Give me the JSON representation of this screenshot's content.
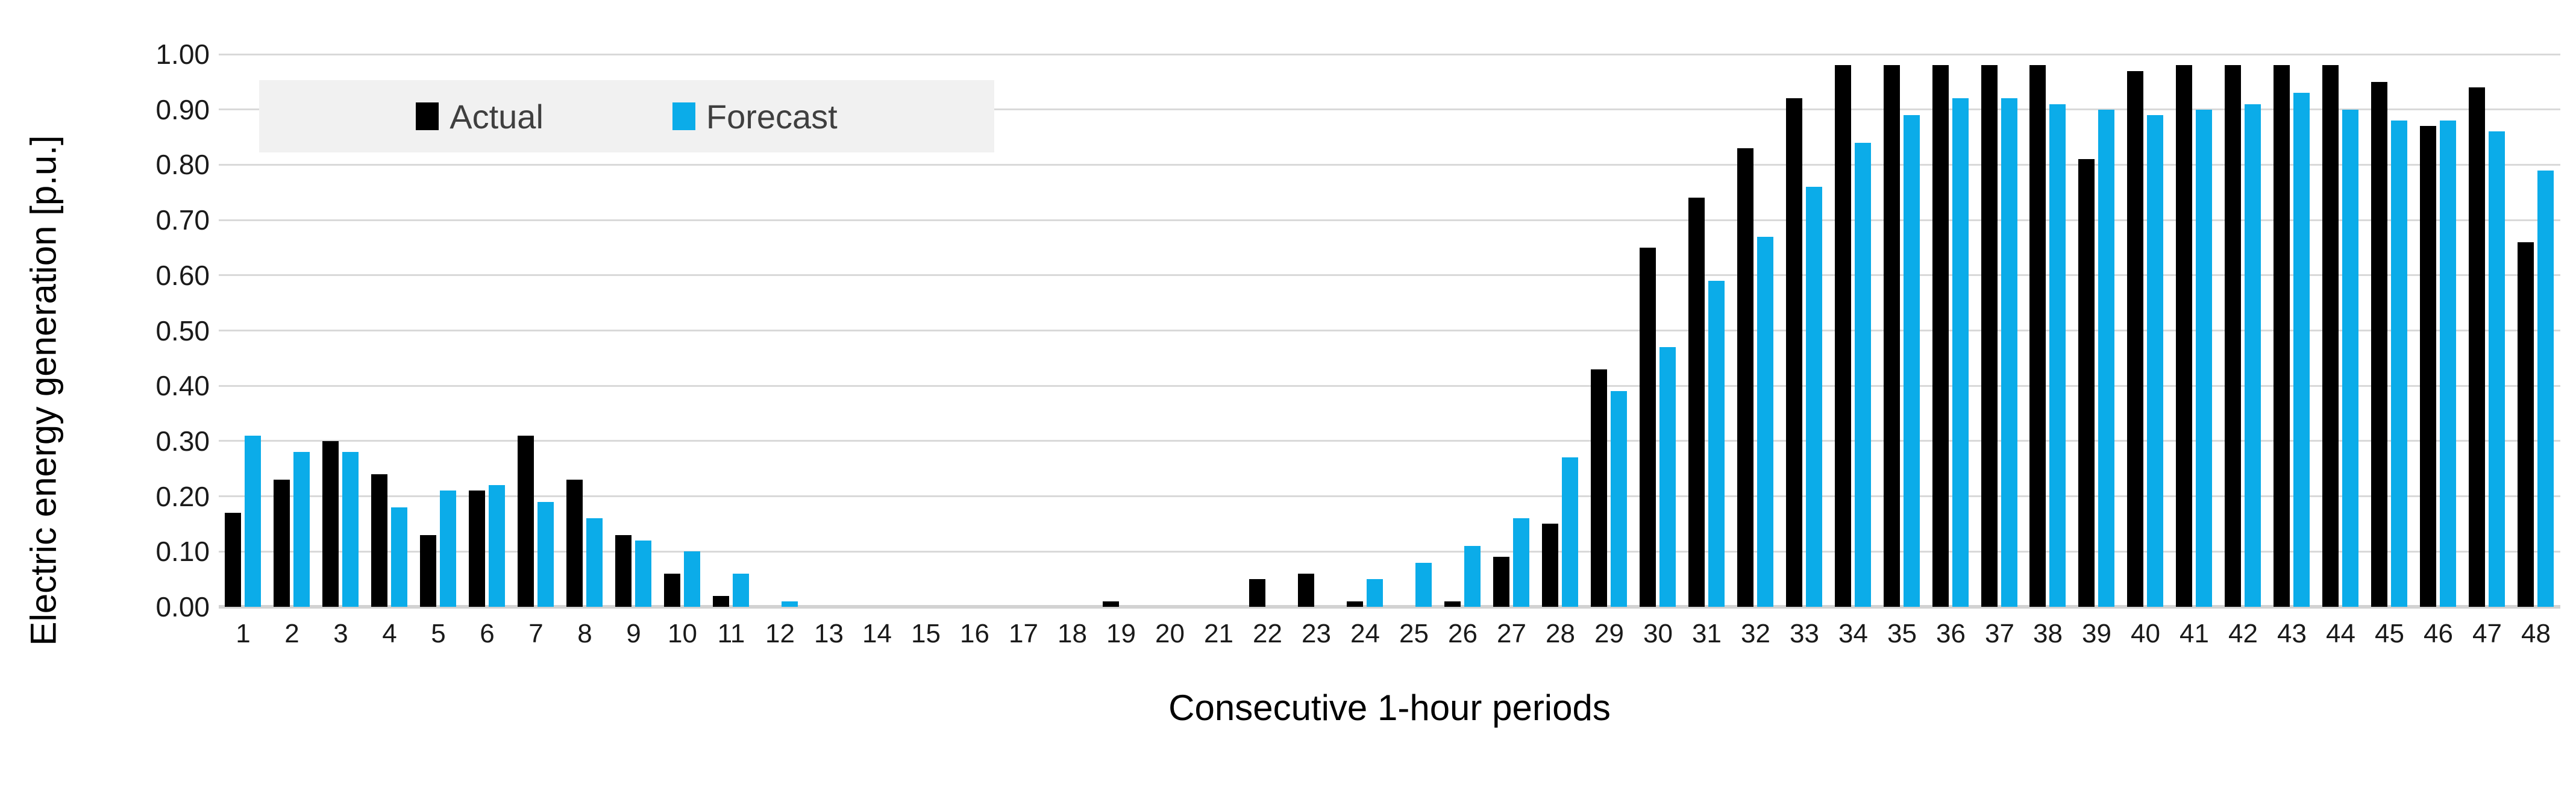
{
  "figure": {
    "background": "#ffffff",
    "gridline_color": "#d9d9d9",
    "axis_text_color": "#1a1a1a"
  },
  "legend": {
    "background": "#f1f1f1",
    "text_color": "#3f3f3f",
    "items": [
      {
        "label": "Actual",
        "color": "#000000"
      },
      {
        "label": "Forecast",
        "color": "#0bace9"
      }
    ]
  },
  "chart_data": {
    "type": "bar",
    "title": "",
    "xlabel": "Consecutive 1-hour periods",
    "ylabel": "Electric energy generation [p.u.]",
    "categories": [
      1,
      2,
      3,
      4,
      5,
      6,
      7,
      8,
      9,
      10,
      11,
      12,
      13,
      14,
      15,
      16,
      17,
      18,
      19,
      20,
      21,
      22,
      23,
      24,
      25,
      26,
      27,
      28,
      29,
      30,
      31,
      32,
      33,
      34,
      35,
      36,
      37,
      38,
      39,
      40,
      41,
      42,
      43,
      44,
      45,
      46,
      47,
      48
    ],
    "series": [
      {
        "name": "Actual",
        "color": "#000000",
        "values": [
          0.17,
          0.23,
          0.3,
          0.24,
          0.13,
          0.21,
          0.31,
          0.23,
          0.13,
          0.06,
          0.02,
          0.0,
          0.0,
          0.0,
          0.0,
          0.0,
          0.0,
          0.0,
          0.01,
          0.0,
          0.0,
          0.05,
          0.06,
          0.01,
          0.0,
          0.01,
          0.09,
          0.15,
          0.43,
          0.65,
          0.74,
          0.83,
          0.92,
          0.98,
          0.98,
          0.98,
          0.98,
          0.98,
          0.81,
          0.97,
          0.98,
          0.98,
          0.98,
          0.98,
          0.95,
          0.87,
          0.94,
          0.66
        ]
      },
      {
        "name": "Forecast",
        "color": "#0bace9",
        "values": [
          0.31,
          0.28,
          0.28,
          0.18,
          0.21,
          0.22,
          0.19,
          0.16,
          0.12,
          0.1,
          0.06,
          0.01,
          0.0,
          0.0,
          0.0,
          0.0,
          0.0,
          0.0,
          0.0,
          0.0,
          0.0,
          0.0,
          0.0,
          0.05,
          0.08,
          0.11,
          0.16,
          0.27,
          0.39,
          0.47,
          0.59,
          0.67,
          0.76,
          0.84,
          0.89,
          0.92,
          0.92,
          0.91,
          0.9,
          0.89,
          0.9,
          0.91,
          0.93,
          0.9,
          0.88,
          0.88,
          0.86,
          0.79
        ]
      }
    ],
    "ylim": [
      0.0,
      1.0
    ],
    "ytick_labels": [
      "0.00",
      "0.10",
      "0.20",
      "0.30",
      "0.40",
      "0.50",
      "0.60",
      "0.70",
      "0.80",
      "0.90",
      "1.00"
    ],
    "grid": "horizontal",
    "legend_position": "inside-top-left"
  }
}
